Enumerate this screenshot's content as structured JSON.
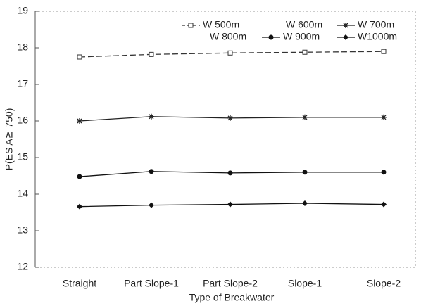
{
  "chart_data": {
    "type": "line",
    "xlabel": "Type of Breakwater",
    "ylabel": "P(ES A≧ 750)",
    "categories": [
      "Straight",
      "Part Slope-1",
      "Part Slope-2",
      "Slope-1",
      "Slope-2"
    ],
    "series": [
      {
        "name": "W 500m",
        "color": "#333333",
        "marker": "square",
        "dash": true,
        "values": [
          17.75,
          17.82,
          17.86,
          17.88,
          17.9
        ]
      },
      {
        "name": "W 600m",
        "color": "#333333",
        "marker": "none",
        "dash": false,
        "values": [
          null,
          null,
          null,
          null,
          null
        ]
      },
      {
        "name": "W 700m",
        "color": "#222222",
        "marker": "star",
        "dash": false,
        "values": [
          16.0,
          16.12,
          16.08,
          16.1,
          16.1
        ]
      },
      {
        "name": "W 800m",
        "color": "#333333",
        "marker": "none",
        "dash": false,
        "values": [
          null,
          null,
          null,
          null,
          null
        ]
      },
      {
        "name": "W 900m",
        "color": "#111111",
        "marker": "circle",
        "dash": false,
        "values": [
          14.48,
          14.62,
          14.58,
          14.6,
          14.6
        ]
      },
      {
        "name": "W1000m",
        "color": "#111111",
        "marker": "diamond",
        "dash": false,
        "values": [
          13.66,
          13.7,
          13.72,
          13.75,
          13.72
        ]
      }
    ],
    "ylim": [
      12,
      19
    ],
    "yticks": [
      12,
      13,
      14,
      15,
      16,
      17,
      18,
      19
    ],
    "grid": false
  }
}
